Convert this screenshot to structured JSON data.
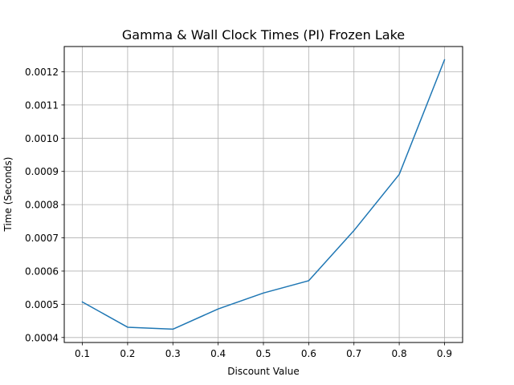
{
  "chart_data": {
    "type": "line",
    "title": "Gamma & Wall Clock Times (PI) Frozen Lake",
    "xlabel": "Discount Value",
    "ylabel": "Time (Seconds)",
    "x": [
      0.1,
      0.2,
      0.3,
      0.4,
      0.5,
      0.6,
      0.7,
      0.8,
      0.9
    ],
    "x_tick_labels": [
      "0.1",
      "0.2",
      "0.3",
      "0.4",
      "0.5",
      "0.6",
      "0.7",
      "0.8",
      "0.9"
    ],
    "y_ticks": [
      0.0004,
      0.0005,
      0.0006,
      0.0007,
      0.0008,
      0.0009,
      0.001,
      0.0011,
      0.0012
    ],
    "y_tick_labels": [
      "0.0004",
      "0.0005",
      "0.0006",
      "0.0007",
      "0.0008",
      "0.0009",
      "0.0010",
      "0.0011",
      "0.0012"
    ],
    "xlim": [
      0.06,
      0.94
    ],
    "ylim": [
      0.000385,
      0.001276
    ],
    "grid": true,
    "series": [
      {
        "color": "#1f77b4",
        "values": [
          0.000507,
          0.000431,
          0.000425,
          0.000486,
          0.000534,
          0.000571,
          0.000722,
          0.000891,
          0.001236
        ]
      }
    ]
  }
}
